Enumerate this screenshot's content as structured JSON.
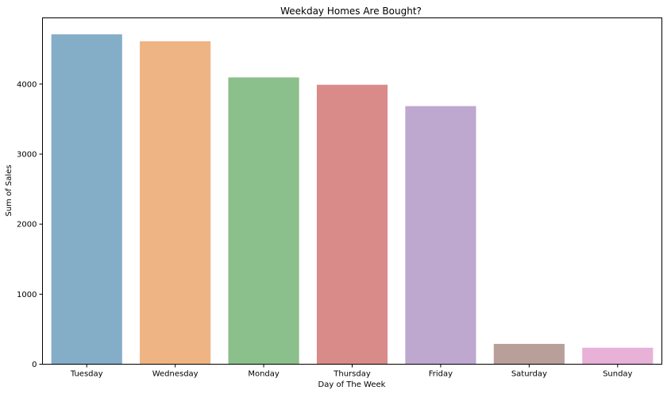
{
  "chart_data": {
    "type": "bar",
    "title": "Weekday Homes Are Bought?",
    "xlabel": "Day of The Week",
    "ylabel": "Sum of Sales",
    "categories": [
      "Tuesday",
      "Wednesday",
      "Monday",
      "Thursday",
      "Friday",
      "Saturday",
      "Sunday"
    ],
    "values": [
      4710,
      4610,
      4095,
      3990,
      3685,
      290,
      235
    ],
    "colors": [
      "#84adc8",
      "#eeb483",
      "#8bbf8b",
      "#d98b8a",
      "#bea8cf",
      "#b89f99",
      "#e8b1d8"
    ],
    "yticks": [
      0,
      1000,
      2000,
      3000,
      4000
    ],
    "ylim": [
      0,
      4945
    ],
    "grid": false,
    "legend": "none"
  }
}
